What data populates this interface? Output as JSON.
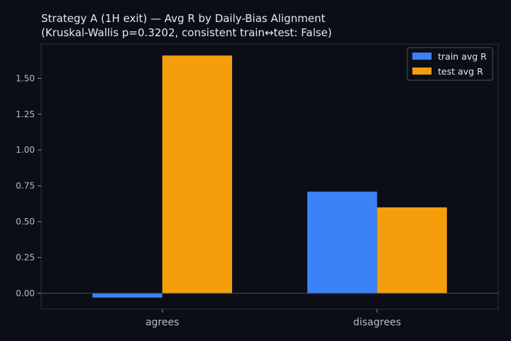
{
  "chart_data": {
    "type": "bar",
    "title": "Strategy A (1H exit) — Avg R by Daily-Bias Alignment",
    "subtitle": "(Kruskal-Wallis p=0.3202, consistent train↔test: False)",
    "categories": [
      "agrees",
      "disagrees"
    ],
    "series": [
      {
        "name": "train avg R",
        "color": "#3b82f6",
        "values": [
          -0.03,
          0.71
        ]
      },
      {
        "name": "test avg R",
        "color": "#f59e0b",
        "values": [
          1.66,
          0.6
        ]
      }
    ],
    "yticks": [
      0.0,
      0.25,
      0.5,
      0.75,
      1.0,
      1.25,
      1.5
    ],
    "ytick_labels": [
      "0.00",
      "0.25",
      "0.50",
      "0.75",
      "1.00",
      "1.25",
      "1.50"
    ],
    "ylim": [
      -0.11,
      1.74
    ],
    "legend_position": "top-right",
    "grid": false,
    "background": "#0b0e17",
    "frame_color": "#2a3040"
  }
}
